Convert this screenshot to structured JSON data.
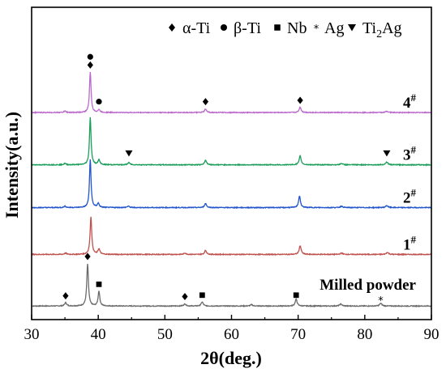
{
  "chart_data": {
    "type": "line",
    "xlabel": "2θ(deg.)",
    "ylabel": "Intensity(a.u.)",
    "xlim": [
      30,
      90
    ],
    "x_ticks": [
      "30",
      "40",
      "50",
      "60",
      "70",
      "80",
      "90"
    ],
    "grid": false,
    "legend_position": "top-right",
    "legend": [
      {
        "symbol": "diamond",
        "label": "α-Ti"
      },
      {
        "symbol": "circle",
        "label": "β-Ti"
      },
      {
        "symbol": "square",
        "label": "Nb"
      },
      {
        "symbol": "asterisk",
        "label": "Ag"
      },
      {
        "symbol": "triangle-down",
        "label": "Ti",
        "sub": "2",
        "suffix": "Ag"
      }
    ],
    "series": [
      {
        "name": "Milled powder",
        "label": "Milled powder",
        "color": "#6b6b6b",
        "baseline": 0.0,
        "peaks": [
          {
            "x": 35.1,
            "h": 0.05,
            "w": 0.35
          },
          {
            "x": 38.4,
            "h": 0.62,
            "w": 0.3
          },
          {
            "x": 40.1,
            "h": 0.22,
            "w": 0.3
          },
          {
            "x": 53.0,
            "h": 0.03,
            "w": 0.4
          },
          {
            "x": 55.6,
            "h": 0.06,
            "w": 0.35
          },
          {
            "x": 63.0,
            "h": 0.02,
            "w": 0.4
          },
          {
            "x": 69.7,
            "h": 0.1,
            "w": 0.35
          },
          {
            "x": 76.4,
            "h": 0.03,
            "w": 0.4
          },
          {
            "x": 82.4,
            "h": 0.04,
            "w": 0.4
          }
        ]
      },
      {
        "name": "1#",
        "label": "1",
        "label_sup": "#",
        "color": "#c0504d",
        "baseline": 0.76,
        "peaks": [
          {
            "x": 35.1,
            "h": 0.02,
            "w": 0.35
          },
          {
            "x": 38.9,
            "h": 0.55,
            "w": 0.3
          },
          {
            "x": 40.1,
            "h": 0.08,
            "w": 0.35
          },
          {
            "x": 53.0,
            "h": 0.02,
            "w": 0.4
          },
          {
            "x": 56.1,
            "h": 0.06,
            "w": 0.35
          },
          {
            "x": 70.3,
            "h": 0.13,
            "w": 0.35
          },
          {
            "x": 76.5,
            "h": 0.02,
            "w": 0.4
          },
          {
            "x": 83.4,
            "h": 0.03,
            "w": 0.4
          }
        ]
      },
      {
        "name": "2#",
        "label": "2",
        "label_sup": "#",
        "color": "#2255cc",
        "baseline": 1.45,
        "peaks": [
          {
            "x": 35.0,
            "h": 0.02,
            "w": 0.35
          },
          {
            "x": 38.8,
            "h": 0.71,
            "w": 0.28
          },
          {
            "x": 40.0,
            "h": 0.06,
            "w": 0.35
          },
          {
            "x": 44.5,
            "h": 0.02,
            "w": 0.4
          },
          {
            "x": 56.1,
            "h": 0.06,
            "w": 0.35
          },
          {
            "x": 70.2,
            "h": 0.17,
            "w": 0.33
          },
          {
            "x": 76.5,
            "h": 0.02,
            "w": 0.4
          },
          {
            "x": 83.3,
            "h": 0.03,
            "w": 0.4
          }
        ]
      },
      {
        "name": "3#",
        "label": "3",
        "label_sup": "#",
        "color": "#1a9e5a",
        "baseline": 2.08,
        "peaks": [
          {
            "x": 35.0,
            "h": 0.02,
            "w": 0.35
          },
          {
            "x": 38.8,
            "h": 0.7,
            "w": 0.28
          },
          {
            "x": 40.1,
            "h": 0.07,
            "w": 0.35
          },
          {
            "x": 44.6,
            "h": 0.03,
            "w": 0.4
          },
          {
            "x": 56.1,
            "h": 0.07,
            "w": 0.35
          },
          {
            "x": 70.3,
            "h": 0.13,
            "w": 0.35
          },
          {
            "x": 76.5,
            "h": 0.02,
            "w": 0.4
          },
          {
            "x": 83.3,
            "h": 0.04,
            "w": 0.4
          }
        ]
      },
      {
        "name": "4#",
        "label": "4",
        "label_sup": "#",
        "color": "#bb6acc",
        "baseline": 2.85,
        "peaks": [
          {
            "x": 35.0,
            "h": 0.02,
            "w": 0.35
          },
          {
            "x": 38.8,
            "h": 0.6,
            "w": 0.28
          },
          {
            "x": 40.1,
            "h": 0.04,
            "w": 0.35
          },
          {
            "x": 56.1,
            "h": 0.05,
            "w": 0.35
          },
          {
            "x": 70.3,
            "h": 0.08,
            "w": 0.35
          },
          {
            "x": 83.3,
            "h": 0.02,
            "w": 0.4
          }
        ]
      }
    ],
    "annotations": [
      {
        "symbol": "diamond",
        "x": 35.1,
        "y": 0.15
      },
      {
        "symbol": "diamond",
        "x": 38.4,
        "y": 0.73
      },
      {
        "symbol": "square",
        "x": 40.1,
        "y": 0.32
      },
      {
        "symbol": "diamond",
        "x": 53.0,
        "y": 0.14
      },
      {
        "symbol": "square",
        "x": 55.6,
        "y": 0.16
      },
      {
        "symbol": "square",
        "x": 69.7,
        "y": 0.16
      },
      {
        "symbol": "asterisk",
        "x": 82.4,
        "y": 0.1
      },
      {
        "symbol": "triangle-down",
        "x": 44.6,
        "y": 2.25
      },
      {
        "symbol": "triangle-down",
        "x": 83.3,
        "y": 2.25
      },
      {
        "symbol": "circle",
        "x": 40.1,
        "y": 3.01
      },
      {
        "symbol": "diamond",
        "x": 56.1,
        "y": 3.01
      },
      {
        "symbol": "diamond",
        "x": 70.3,
        "y": 3.03
      },
      {
        "symbol": "diamond",
        "x": 38.8,
        "y": 3.55
      },
      {
        "symbol": "circle",
        "x": 38.8,
        "y": 3.67
      }
    ]
  }
}
